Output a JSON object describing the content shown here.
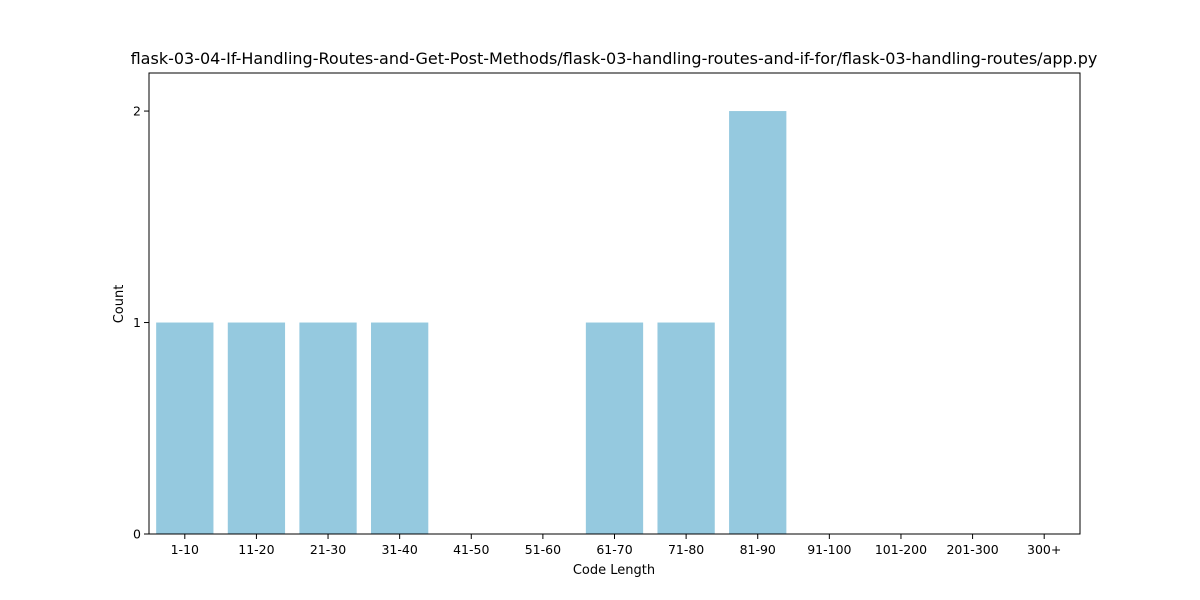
{
  "chart_data": {
    "type": "bar",
    "title": "flask-03-04-If-Handling-Routes-and-Get-Post-Methods/flask-03-handling-routes-and-if-for/flask-03-handling-routes/app.py",
    "xlabel": "Code Length",
    "ylabel": "Count",
    "categories": [
      "1-10",
      "11-20",
      "21-30",
      "31-40",
      "41-50",
      "51-60",
      "61-70",
      "71-80",
      "81-90",
      "91-100",
      "101-200",
      "201-300",
      "300+"
    ],
    "values": [
      1,
      1,
      1,
      1,
      0,
      0,
      1,
      1,
      2,
      0,
      0,
      0,
      0
    ],
    "ylim": [
      0,
      2.18
    ],
    "yticks": [
      "0",
      "1",
      "2"
    ],
    "bar_color": "#95c9df",
    "grid": false,
    "legend": "none"
  }
}
